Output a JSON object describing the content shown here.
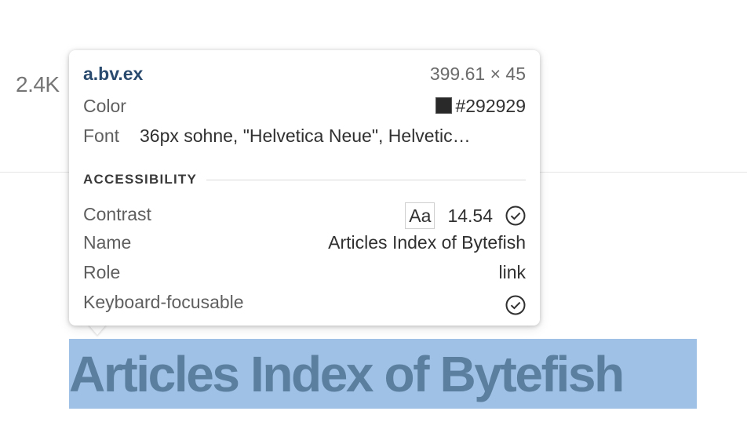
{
  "background_page": {
    "count": "2.4K",
    "link_title": "Articles Index of Bytefish"
  },
  "inspector_tooltip": {
    "selector": "a.bv.ex",
    "dimensions": "399.61 × 45",
    "color": {
      "label": "Color",
      "value": "#292929",
      "swatch": "#292929"
    },
    "font": {
      "label": "Font",
      "value": "36px sohne, \"Helvetica Neue\", Helvetic…"
    },
    "accessibility": {
      "title": "ACCESSIBILITY",
      "contrast": {
        "label": "Contrast",
        "sample": "Aa",
        "ratio": "14.54",
        "icon": "check-circle-icon"
      },
      "name": {
        "label": "Name",
        "value": "Articles Index of Bytefish"
      },
      "role": {
        "label": "Role",
        "value": "link"
      },
      "keyboard": {
        "label": "Keyboard-focusable",
        "icon": "check-circle-icon"
      }
    }
  },
  "colors": {
    "highlight": "#9fc1e6",
    "link_text": "#5b7f9e",
    "selector": "#2a4a6e"
  }
}
